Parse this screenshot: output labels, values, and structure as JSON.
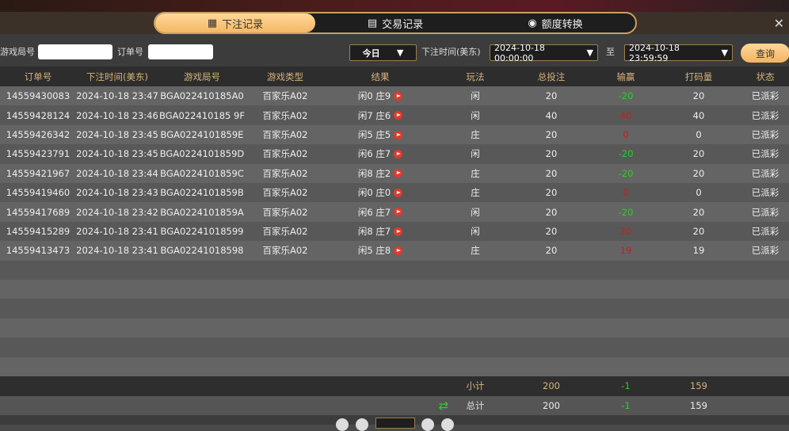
{
  "tabs": [
    {
      "label": "下注记录",
      "icon": "calendar-icon",
      "active": true
    },
    {
      "label": "交易记录",
      "icon": "clipboard-icon"
    },
    {
      "label": "额度转换",
      "icon": "coins-icon"
    }
  ],
  "filter": {
    "round_label": "游戏局号",
    "round_value": "",
    "order_label": "订单号",
    "order_value": "",
    "period": "今日",
    "time_label": "下注时间(美东)",
    "start": "2024-10-18 00:00:00",
    "to_label": "至",
    "end": "2024-10-18 23:59:59",
    "query": "查询"
  },
  "columns": [
    "订单号",
    "下注时间(美东)",
    "游戏局号",
    "游戏类型",
    "结果",
    "玩法",
    "总投注",
    "输赢",
    "打码量",
    "状态"
  ],
  "rows": [
    [
      "14559430083",
      "2024-10-18 23:47",
      "BGA022410185A0",
      "百家乐A02",
      "闲0 庄9",
      "闲",
      "20",
      "-20",
      "20",
      "已派彩"
    ],
    [
      "14559428124",
      "2024-10-18 23:46",
      "BGA022410185 9F",
      "百家乐A02",
      "闲7 庄6",
      "闲",
      "40",
      "40",
      "40",
      "已派彩"
    ],
    [
      "14559426342",
      "2024-10-18 23:45",
      "BGA0224101859E",
      "百家乐A02",
      "闲5 庄5",
      "庄",
      "20",
      "0",
      "0",
      "已派彩"
    ],
    [
      "14559423791",
      "2024-10-18 23:45",
      "BGA0224101859D",
      "百家乐A02",
      "闲6 庄7",
      "闲",
      "20",
      "-20",
      "20",
      "已派彩"
    ],
    [
      "14559421967",
      "2024-10-18 23:44",
      "BGA0224101859C",
      "百家乐A02",
      "闲8 庄2",
      "庄",
      "20",
      "-20",
      "20",
      "已派彩"
    ],
    [
      "14559419460",
      "2024-10-18 23:43",
      "BGA0224101859B",
      "百家乐A02",
      "闲0 庄0",
      "庄",
      "20",
      "0",
      "0",
      "已派彩"
    ],
    [
      "14559417689",
      "2024-10-18 23:42",
      "BGA0224101859A",
      "百家乐A02",
      "闲6 庄7",
      "闲",
      "20",
      "-20",
      "20",
      "已派彩"
    ],
    [
      "14559415289",
      "2024-10-18 23:41",
      "BGA02241018599",
      "百家乐A02",
      "闲8 庄7",
      "闲",
      "20",
      "20",
      "20",
      "已派彩"
    ],
    [
      "14559413473",
      "2024-10-18 23:41",
      "BGA02241018598",
      "百家乐A02",
      "闲5 庄8",
      "庄",
      "20",
      "19",
      "19",
      "已派彩"
    ]
  ],
  "subtotal": {
    "label": "小计",
    "bet": "200",
    "winloss": "-1",
    "turnover": "159"
  },
  "total": {
    "label": "总计",
    "bet": "200",
    "winloss": "-1",
    "turnover": "159"
  },
  "colors": {
    "accent": "#f3b865",
    "win": "#c02020",
    "loss": "#2ecc2e"
  }
}
